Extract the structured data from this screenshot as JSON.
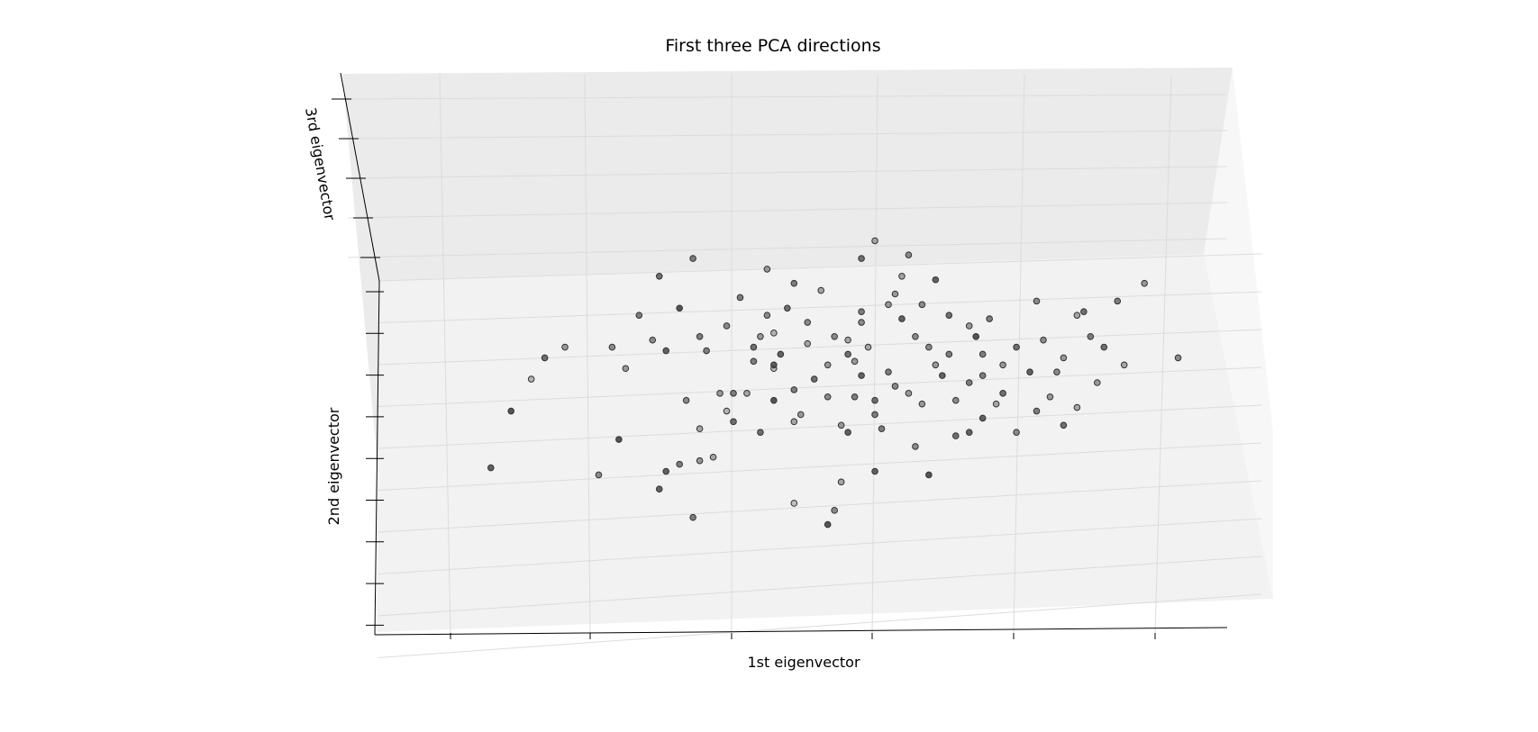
{
  "chart_data": {
    "type": "scatter",
    "projection": "3d",
    "title": "First three PCA directions",
    "xlabel": "1st eigenvector",
    "ylabel": "2nd eigenvector",
    "zlabel": "3rd eigenvector",
    "tick_labels_shown": false,
    "grid": true,
    "legend": "none",
    "marker": "circle",
    "colormap": "grayscale",
    "colors": {
      "pane_back": "#ebebeb",
      "pane_floor": "#f2f2f2",
      "pane_side": "#f7f7f7",
      "grid": "#d9d9d9",
      "axis": "#000000"
    },
    "points": [
      [
        0.31,
        0.25,
        0.8
      ],
      [
        0.33,
        0.27,
        0.6
      ],
      [
        0.36,
        0.28,
        0.4
      ],
      [
        0.55,
        0.1,
        0.9
      ],
      [
        0.56,
        0.14,
        0.5
      ],
      [
        0.41,
        0.39,
        0.7
      ],
      [
        0.4,
        0.42,
        0.2
      ],
      [
        0.47,
        0.45,
        0.9
      ],
      [
        0.58,
        0.36,
        0.8
      ],
      [
        0.62,
        0.41,
        0.6
      ],
      [
        0.05,
        0.26,
        0.8
      ],
      [
        0.21,
        0.24,
        0.5
      ],
      [
        0.35,
        0.12,
        0.6
      ],
      [
        0.38,
        0.29,
        0.3
      ],
      [
        0.47,
        0.54,
        0.2
      ],
      [
        0.55,
        0.55,
        0.4
      ],
      [
        0.46,
        0.69,
        0.5
      ],
      [
        0.58,
        0.62,
        0.3
      ],
      [
        0.6,
        0.67,
        0.5
      ],
      [
        0.59,
        0.46,
        0.6
      ],
      [
        0.7,
        0.24,
        0.9
      ],
      [
        0.74,
        0.35,
        0.7
      ],
      [
        0.76,
        0.36,
        0.8
      ],
      [
        0.88,
        0.46,
        0.4
      ],
      [
        0.9,
        0.38,
        0.7
      ],
      [
        0.92,
        0.43,
        0.3
      ],
      [
        0.65,
        0.75,
        0.4
      ],
      [
        0.66,
        0.8,
        0.3
      ],
      [
        0.57,
        0.22,
        0.3
      ],
      [
        0.62,
        0.25,
        0.8
      ],
      [
        0.5,
        0.16,
        0.1
      ],
      [
        0.3,
        0.2,
        0.8
      ],
      [
        0.43,
        0.47,
        0.3
      ],
      [
        0.47,
        0.55,
        0.8
      ],
      [
        0.53,
        0.51,
        0.7
      ],
      [
        0.69,
        0.44,
        0.4
      ],
      [
        0.74,
        0.45,
        0.5
      ],
      [
        0.76,
        0.5,
        0.6
      ],
      [
        0.72,
        0.52,
        0.8
      ],
      [
        0.62,
        0.45,
        0.7
      ],
      [
        0.37,
        0.59,
        0.6
      ],
      [
        0.47,
        0.64,
        0.2
      ],
      [
        0.33,
        0.71,
        0.9
      ],
      [
        0.42,
        0.74,
        0.6
      ],
      [
        0.59,
        0.56,
        0.4
      ],
      [
        0.36,
        0.37,
        0.3
      ],
      [
        0.41,
        0.47,
        0.6
      ],
      [
        0.24,
        0.34,
        0.9
      ],
      [
        0.83,
        0.36,
        0.5
      ],
      [
        0.81,
        0.47,
        0.7
      ],
      [
        0.11,
        0.51,
        0.2
      ],
      [
        0.08,
        0.42,
        0.9
      ],
      [
        0.13,
        0.57,
        0.7
      ],
      [
        0.16,
        0.6,
        0.4
      ],
      [
        0.23,
        0.6,
        0.5
      ],
      [
        0.29,
        0.62,
        0.5
      ],
      [
        0.31,
        0.59,
        0.8
      ],
      [
        0.27,
        0.69,
        0.6
      ],
      [
        0.25,
        0.54,
        0.4
      ],
      [
        0.93,
        0.7,
        0.7
      ],
      [
        0.85,
        0.53,
        0.8
      ],
      [
        0.89,
        0.53,
        0.5
      ],
      [
        0.77,
        0.63,
        0.9
      ],
      [
        0.78,
        0.58,
        0.6
      ],
      [
        0.86,
        0.73,
        0.5
      ],
      [
        0.9,
        0.57,
        0.4
      ],
      [
        0.92,
        0.69,
        0.3
      ],
      [
        0.98,
        0.73,
        0.6
      ],
      [
        1.02,
        0.78,
        0.4
      ],
      [
        0.94,
        0.63,
        0.6
      ],
      [
        0.8,
        0.44,
        0.3
      ],
      [
        0.7,
        0.6,
        0.5
      ],
      [
        0.73,
        0.58,
        0.6
      ],
      [
        0.81,
        0.55,
        0.4
      ],
      [
        0.66,
        0.68,
        0.8
      ],
      [
        0.52,
        0.67,
        0.5
      ],
      [
        0.49,
        0.71,
        0.7
      ],
      [
        0.44,
        0.56,
        0.6
      ],
      [
        0.39,
        0.47,
        0.4
      ],
      [
        0.34,
        0.45,
        0.5
      ],
      [
        0.5,
        0.48,
        0.6
      ],
      [
        0.55,
        0.46,
        0.5
      ],
      [
        0.64,
        0.53,
        0.6
      ],
      [
        0.58,
        0.58,
        0.7
      ],
      [
        0.61,
        0.6,
        0.3
      ],
      [
        0.68,
        0.63,
        0.5
      ],
      [
        0.71,
        0.55,
        0.4
      ],
      [
        0.78,
        0.52,
        0.6
      ],
      [
        0.83,
        0.6,
        0.7
      ],
      [
        0.87,
        0.62,
        0.5
      ],
      [
        0.45,
        0.63,
        0.4
      ],
      [
        0.4,
        0.66,
        0.5
      ],
      [
        0.36,
        0.63,
        0.6
      ],
      [
        0.44,
        0.6,
        0.7
      ],
      [
        0.48,
        0.58,
        0.8
      ],
      [
        0.52,
        0.61,
        0.3
      ],
      [
        0.56,
        0.63,
        0.5
      ],
      [
        0.6,
        0.7,
        0.6
      ],
      [
        0.64,
        0.72,
        0.4
      ],
      [
        0.69,
        0.72,
        0.5
      ],
      [
        0.73,
        0.69,
        0.7
      ],
      [
        0.76,
        0.66,
        0.4
      ],
      [
        0.79,
        0.68,
        0.6
      ],
      [
        0.71,
        0.79,
        0.8
      ],
      [
        0.54,
        0.76,
        0.3
      ],
      [
        0.5,
        0.78,
        0.6
      ],
      [
        0.46,
        0.82,
        0.4
      ],
      [
        0.6,
        0.85,
        0.7
      ],
      [
        0.67,
        0.86,
        0.5
      ],
      [
        0.62,
        0.9,
        0.3
      ],
      [
        0.35,
        0.85,
        0.6
      ],
      [
        0.3,
        0.8,
        0.7
      ],
      [
        0.57,
        0.38,
        0.4
      ],
      [
        0.63,
        0.37,
        0.6
      ],
      [
        0.68,
        0.32,
        0.5
      ],
      [
        0.78,
        0.4,
        0.8
      ],
      [
        0.86,
        0.42,
        0.6
      ],
      [
        0.95,
        0.5,
        0.4
      ],
      [
        0.99,
        0.55,
        0.3
      ],
      [
        1.07,
        0.57,
        0.5
      ],
      [
        0.96,
        0.6,
        0.7
      ],
      [
        0.51,
        0.41,
        0.4
      ],
      [
        0.45,
        0.36,
        0.7
      ],
      [
        0.5,
        0.39,
        0.3
      ],
      [
        0.6,
        0.52,
        0.8
      ],
      [
        0.65,
        0.49,
        0.5
      ],
      [
        0.67,
        0.47,
        0.4
      ]
    ],
    "xlim": [
      -0.05,
      1.1
    ],
    "ylim": [
      0,
      1
    ],
    "zlim": [
      0,
      1
    ]
  }
}
